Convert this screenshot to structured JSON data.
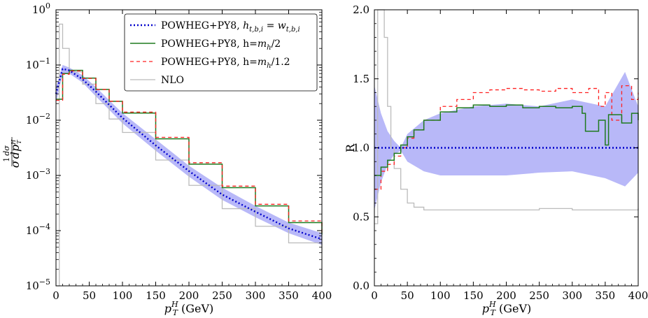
{
  "chart_data": [
    {
      "type": "line",
      "panel": "left",
      "yscale": "log",
      "xlim": [
        0,
        400
      ],
      "ylim": [
        1e-05,
        1
      ],
      "xlabel": "p_T^H (GeV)",
      "ylabel": "1/σ dσ/dp_T^H",
      "x_ticks": [
        "0",
        "50",
        "100",
        "150",
        "200",
        "250",
        "300",
        "350",
        "400"
      ],
      "y_ticks": [
        {
          "base": "10",
          "exp": "0"
        },
        {
          "base": "10",
          "exp": "−1"
        },
        {
          "base": "10",
          "exp": "−2"
        },
        {
          "base": "10",
          "exp": "−3"
        },
        {
          "base": "10",
          "exp": "−4"
        },
        {
          "base": "10",
          "exp": "−5"
        }
      ],
      "legend_position": "top-right",
      "legend": [
        {
          "main": "POWHEG+PY8, ",
          "math": "h",
          "sub": "t,b,i",
          "mid": " = ",
          "math2": "w",
          "sub2": "t,b,i",
          "style": "dotted",
          "color": "#0000cc"
        },
        {
          "main": "POWHEG+PY8, h=",
          "math": "m",
          "sub": "h",
          "tail": "/2",
          "style": "solid",
          "color": "#1e7a1e"
        },
        {
          "main": "POWHEG+PY8, h=",
          "math": "m",
          "sub": "h",
          "tail": "/1.2",
          "style": "dashed",
          "color": "#ff2020"
        },
        {
          "main": "NLO",
          "style": "solid",
          "color": "#bbbbbb"
        }
      ],
      "series": [
        {
          "name": "POWHEG+PY8 h=w (central)",
          "x": [
            0,
            10,
            20,
            40,
            60,
            80,
            100,
            150,
            200,
            250,
            300,
            350,
            400
          ],
          "values": [
            0.03,
            0.085,
            0.08,
            0.055,
            0.033,
            0.019,
            0.011,
            0.0035,
            0.0012,
            0.00045,
            0.00022,
            0.00011,
            7e-05
          ]
        },
        {
          "name": "POWHEG+PY8 h=w band upper",
          "x": [
            0,
            10,
            20,
            40,
            60,
            80,
            100,
            150,
            200,
            250,
            300,
            350,
            400
          ],
          "values": [
            0.04,
            0.1,
            0.09,
            0.065,
            0.04,
            0.023,
            0.0135,
            0.0045,
            0.0015,
            0.0006,
            0.00028,
            0.00014,
            9e-05
          ]
        },
        {
          "name": "POWHEG+PY8 h=w band lower",
          "x": [
            0,
            10,
            20,
            40,
            60,
            80,
            100,
            150,
            200,
            250,
            300,
            350,
            400
          ],
          "values": [
            0.02,
            0.07,
            0.07,
            0.048,
            0.027,
            0.0155,
            0.0088,
            0.0028,
            0.00095,
            0.00036,
            0.000175,
            9e-05,
            5.5e-05
          ]
        },
        {
          "name": "POWHEG+PY8 h=m_h/2",
          "x": [
            0,
            10,
            20,
            40,
            60,
            80,
            100,
            150,
            200,
            250,
            300,
            350,
            400
          ],
          "values": [
            0.024,
            0.07,
            0.08,
            0.058,
            0.036,
            0.022,
            0.0135,
            0.0046,
            0.0016,
            0.0006,
            0.00028,
            0.00014,
            8.5e-05
          ]
        },
        {
          "name": "POWHEG+PY8 h=m_h/1.2",
          "x": [
            0,
            10,
            20,
            40,
            60,
            80,
            100,
            150,
            200,
            250,
            300,
            350,
            400
          ],
          "values": [
            0.023,
            0.068,
            0.078,
            0.057,
            0.036,
            0.022,
            0.014,
            0.0049,
            0.0017,
            0.00064,
            0.0003,
            0.00015,
            9e-05
          ]
        },
        {
          "name": "NLO",
          "x": [
            0,
            5,
            10,
            20,
            40,
            60,
            80,
            100,
            150,
            200,
            250,
            300,
            350,
            400
          ],
          "values": [
            1e-05,
            0.55,
            0.2,
            0.075,
            0.045,
            0.02,
            0.0105,
            0.006,
            0.0019,
            0.00066,
            0.00025,
            0.00012,
            6e-05,
            4e-05
          ]
        }
      ]
    },
    {
      "type": "line",
      "panel": "right",
      "yscale": "linear",
      "xlim": [
        0,
        400
      ],
      "ylim": [
        0,
        2
      ],
      "xlabel": "p_T^H (GeV)",
      "ylabel": "R",
      "x_ticks": [
        "0",
        "50",
        "100",
        "150",
        "200",
        "250",
        "300",
        "350",
        "400"
      ],
      "y_ticks": [
        "0.0",
        "0.5",
        "1.0",
        "1.5",
        "2.0"
      ],
      "series": [
        {
          "name": "POWHEG+PY8 h=w (ratio)",
          "x": [
            0,
            400
          ],
          "values": [
            1.0,
            1.0
          ]
        },
        {
          "name": "band upper",
          "x": [
            0,
            10,
            20,
            30,
            40,
            50,
            75,
            100,
            150,
            200,
            250,
            300,
            350,
            380,
            400
          ],
          "values": [
            1.45,
            1.25,
            1.12,
            1.05,
            1.0,
            1.1,
            1.2,
            1.25,
            1.3,
            1.32,
            1.3,
            1.35,
            1.3,
            1.55,
            1.3
          ]
        },
        {
          "name": "band lower",
          "x": [
            0,
            10,
            20,
            30,
            40,
            50,
            75,
            100,
            150,
            200,
            250,
            300,
            350,
            380,
            400
          ],
          "values": [
            0.55,
            0.75,
            0.88,
            0.95,
            0.98,
            0.9,
            0.83,
            0.8,
            0.8,
            0.8,
            0.82,
            0.83,
            0.78,
            0.72,
            0.82
          ]
        },
        {
          "name": "POWHEG+PY8 h=m_h/2",
          "x": [
            0,
            10,
            20,
            30,
            40,
            50,
            60,
            75,
            100,
            125,
            150,
            175,
            200,
            225,
            250,
            275,
            300,
            315,
            320,
            340,
            350,
            355,
            375,
            390,
            400
          ],
          "values": [
            0.8,
            0.86,
            0.91,
            0.96,
            1.02,
            1.08,
            1.13,
            1.2,
            1.26,
            1.29,
            1.31,
            1.3,
            1.31,
            1.29,
            1.3,
            1.29,
            1.3,
            1.25,
            1.12,
            1.2,
            1.02,
            1.24,
            1.18,
            1.25,
            1.2
          ]
        },
        {
          "name": "POWHEG+PY8 h=m_h/1.2",
          "x": [
            0,
            10,
            20,
            30,
            40,
            50,
            60,
            75,
            100,
            125,
            150,
            175,
            200,
            225,
            250,
            275,
            300,
            325,
            340,
            350,
            360,
            375,
            390,
            400
          ],
          "values": [
            0.7,
            0.83,
            0.88,
            0.94,
            1.0,
            1.07,
            1.13,
            1.2,
            1.3,
            1.35,
            1.4,
            1.42,
            1.43,
            1.42,
            1.41,
            1.43,
            1.4,
            1.43,
            1.3,
            1.4,
            1.2,
            1.45,
            1.35,
            1.4
          ]
        },
        {
          "name": "NLO (ratio)",
          "x": [
            0,
            5,
            10,
            15,
            20,
            25,
            30,
            40,
            50,
            60,
            75,
            100,
            150,
            200,
            250,
            300,
            350,
            400
          ],
          "values": [
            0.45,
            2.0,
            2.0,
            1.8,
            1.3,
            1.0,
            0.85,
            0.7,
            0.6,
            0.57,
            0.55,
            0.55,
            0.55,
            0.55,
            0.56,
            0.55,
            0.55,
            0.56
          ]
        }
      ]
    }
  ]
}
